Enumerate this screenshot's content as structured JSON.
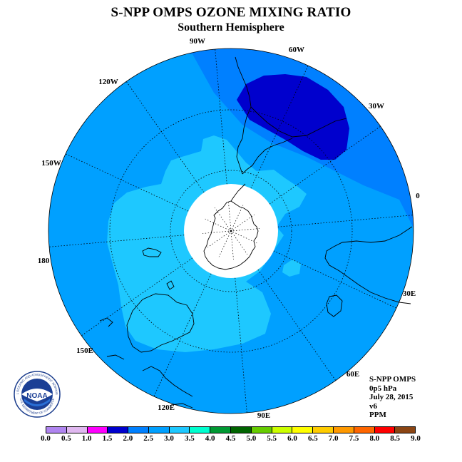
{
  "title": "S-NPP OMPS OZONE MIXING RATIO",
  "subtitle": "Southern Hemisphere",
  "map": {
    "projection": "south-polar-stereographic",
    "longitude_labels": {
      "lon_90W": "90W",
      "lon_60W": "60W",
      "lon_30W": "30W",
      "lon_0": "0",
      "lon_30E": "30E",
      "lon_60E": "60E",
      "lon_90E": "90E",
      "lon_120E": "120E",
      "lon_150E": "150E",
      "lon_180": "180",
      "lon_150W": "150W",
      "lon_120W": "120W"
    },
    "field_colors": {
      "range_2_0_2_5": "#0080ff",
      "range_2_5_3_0": "#00a0ff",
      "range_3_0_3_5": "#1ec8ff",
      "range_1_5_2_0": "#0000cd",
      "no_data": "#ffffff"
    }
  },
  "info": {
    "instrument": "S-NPP OMPS",
    "level": "0p5 hPa",
    "date": "July 28, 2015",
    "version": "v6",
    "units": "PPM"
  },
  "colorbar": {
    "colors": [
      "#b085f0",
      "#e0b8f0",
      "#ff00ff",
      "#0000cd",
      "#0080ff",
      "#00a0ff",
      "#1ec8ff",
      "#00ffd0",
      "#009933",
      "#006400",
      "#66cc00",
      "#ccff00",
      "#ffff00",
      "#ffcc00",
      "#ff9900",
      "#ff6600",
      "#ff0000",
      "#8b4513"
    ],
    "labels": [
      "0.0",
      "0.5",
      "1.0",
      "1.5",
      "2.0",
      "2.5",
      "3.0",
      "3.5",
      "4.0",
      "4.5",
      "5.0",
      "5.5",
      "6.0",
      "6.5",
      "7.0",
      "7.5",
      "8.0",
      "8.5",
      "9.0"
    ]
  },
  "logo": {
    "text": "NOAA",
    "ring_text": "NATIONAL OCEANIC AND ATMOSPHERIC ADMINISTRATION",
    "ring_text_bottom": "U.S. DEPARTMENT OF COMMERCE"
  }
}
